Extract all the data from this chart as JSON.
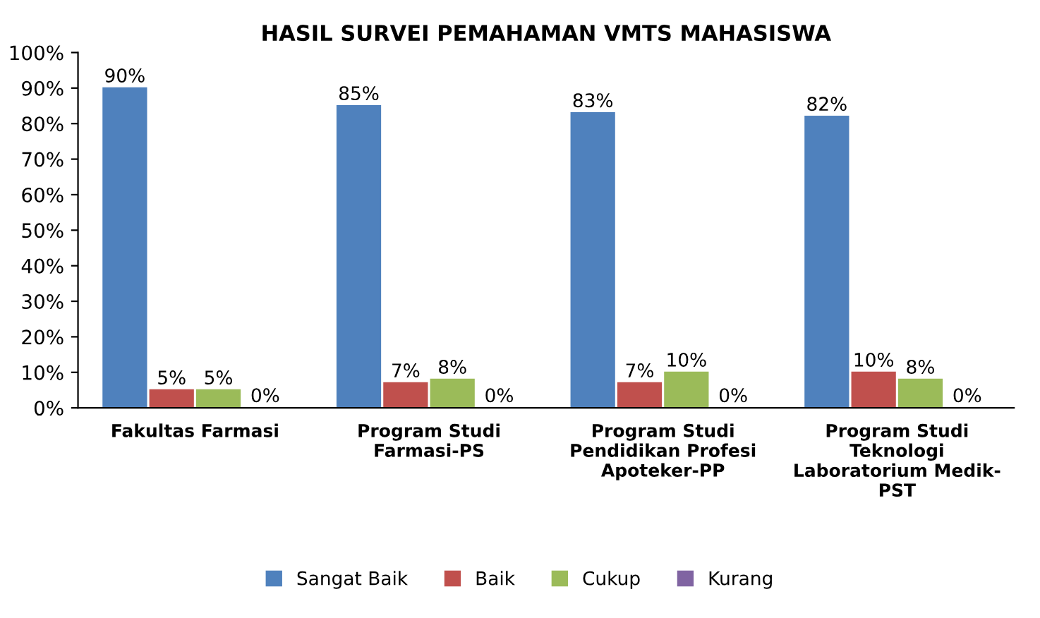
{
  "chart_data": {
    "type": "bar",
    "title": "HASIL SURVEI PEMAHAMAN VMTS MAHASISWA",
    "categories": [
      "Fakultas Farmasi",
      "Program Studi\nFarmasi-PS",
      "Program Studi\nPendidikan Profesi\nApoteker-PP",
      "Program Studi\nTeknologi\nLaboratorium Medik-\nPST"
    ],
    "series": [
      {
        "name": "Sangat Baik",
        "color": "#4f81bd",
        "values": [
          90,
          85,
          83,
          82
        ],
        "value_labels": [
          "90%",
          "85%",
          "83%",
          "82%"
        ]
      },
      {
        "name": "Baik",
        "color": "#c0504d",
        "values": [
          5,
          7,
          7,
          10
        ],
        "value_labels": [
          "5%",
          "7%",
          "7%",
          "10%"
        ]
      },
      {
        "name": "Cukup",
        "color": "#9bbb59",
        "values": [
          5,
          8,
          10,
          8
        ],
        "value_labels": [
          "5%",
          "8%",
          "10%",
          "8%"
        ]
      },
      {
        "name": "Kurang",
        "color": "#8064a2",
        "values": [
          0,
          0,
          0,
          0
        ],
        "value_labels": [
          "0%",
          "0%",
          "0%",
          "0%"
        ]
      }
    ],
    "ylim": [
      0,
      100
    ],
    "yticks": [
      {
        "value": 0,
        "label": "0%"
      },
      {
        "value": 10,
        "label": "10%"
      },
      {
        "value": 20,
        "label": "20%"
      },
      {
        "value": 30,
        "label": "30%"
      },
      {
        "value": 40,
        "label": "40%"
      },
      {
        "value": 50,
        "label": "50%"
      },
      {
        "value": 60,
        "label": "60%"
      },
      {
        "value": 70,
        "label": "70%"
      },
      {
        "value": 80,
        "label": "80%"
      },
      {
        "value": 90,
        "label": "90%"
      },
      {
        "value": 100,
        "label": "100%"
      }
    ],
    "grid": false,
    "legend": "bottom"
  }
}
